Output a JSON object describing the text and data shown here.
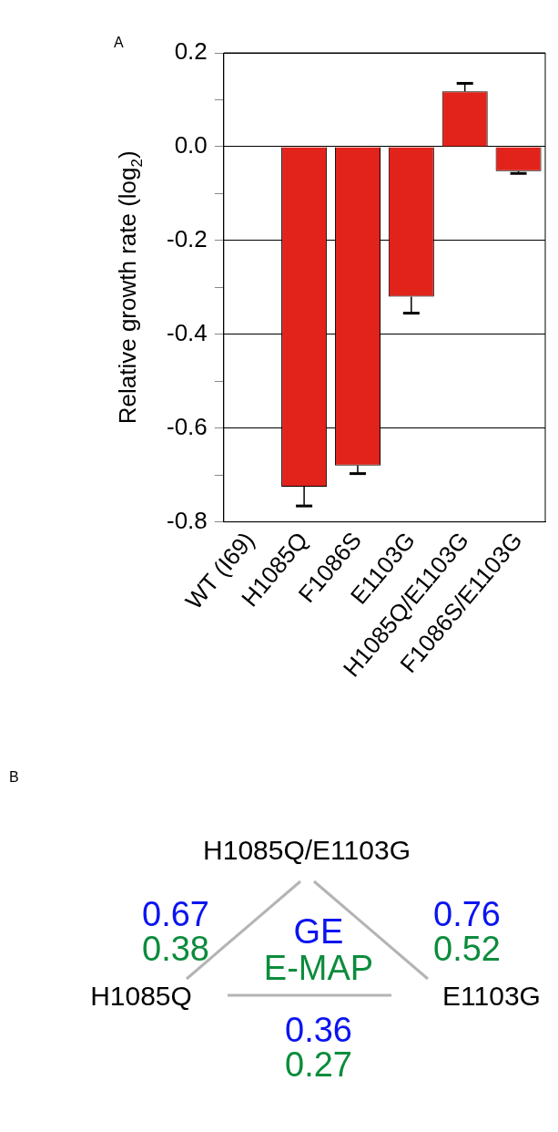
{
  "chart_data": [
    {
      "type": "bar",
      "title": "A",
      "ylabel": "Relative growth rate (log$_{2}$)",
      "categories": [
        "WT (I69)",
        "H1085Q",
        "F1086S",
        "E1103G",
        "H1085Q/E1103G",
        "F1086S/E1103G"
      ],
      "values": [
        0,
        -0.725,
        -0.68,
        -0.32,
        0.118,
        -0.052
      ],
      "errors": [
        null,
        [
          -0.766,
          -0.725
        ],
        [
          -0.697,
          -0.68
        ],
        [
          -0.355,
          -0.32
        ],
        [
          0.118,
          0.135
        ],
        [
          -0.057,
          -0.052
        ]
      ],
      "color": "#e2231b",
      "ylim": [
        -0.8,
        0.2
      ],
      "yticks": [
        0.2,
        {
          "value": 0.1,
          "label": null
        },
        {
          "value": 0,
          "label": "0.0"
        },
        {
          "value": -0.1,
          "label": null
        },
        -0.2,
        {
          "value": -0.3,
          "label": null
        },
        -0.4,
        {
          "value": -0.5,
          "label": null
        },
        -0.6,
        {
          "value": -0.7,
          "label": null
        },
        -0.8
      ],
      "grid": "y"
    },
    {
      "type": "other",
      "title": "B",
      "data_labels": true,
      "categories": [
        "H1085Q",
        "E1103G",
        "H1085Q/E1103G"
      ],
      "series": [
        {
          "name": "GE",
          "color": "#0a14f0",
          "values": [
            0.67,
            0.76,
            0.36
          ]
        },
        {
          "name": "E-MAP",
          "color": "#0c8c3c",
          "values": [
            0.38,
            0.52,
            0.27
          ]
        }
      ]
    }
  ]
}
